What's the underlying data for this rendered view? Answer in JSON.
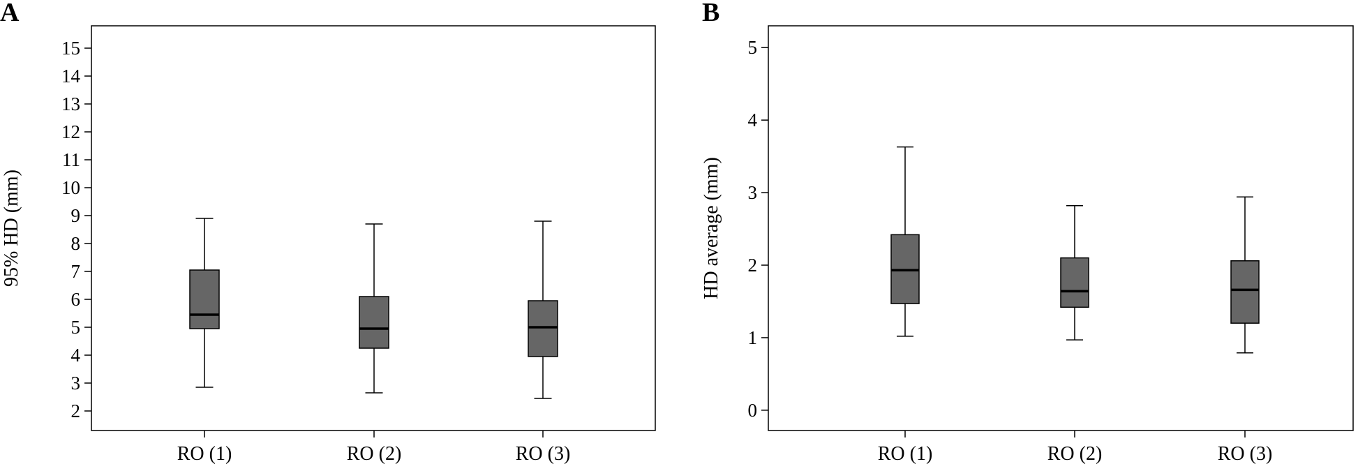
{
  "figure": {
    "panels": [
      {
        "letter": "A"
      },
      {
        "letter": "B"
      }
    ]
  },
  "chart_data": [
    {
      "type": "box",
      "panel": "A",
      "title": "",
      "xlabel": "",
      "ylabel": "95% HD (mm)",
      "ylim": [
        1.3,
        15.8
      ],
      "yticks": [
        2,
        3,
        4,
        5,
        6,
        7,
        8,
        9,
        10,
        11,
        12,
        13,
        14,
        15
      ],
      "grid": false,
      "categories": [
        "RO (1)",
        "RO (2)",
        "RO (3)"
      ],
      "boxes": [
        {
          "min": 2.85,
          "q1": 4.95,
          "median": 5.45,
          "q3": 7.05,
          "max": 8.9
        },
        {
          "min": 2.65,
          "q1": 4.25,
          "median": 4.95,
          "q3": 6.1,
          "max": 8.7
        },
        {
          "min": 2.45,
          "q1": 3.95,
          "median": 5.0,
          "q3": 5.95,
          "max": 8.8
        }
      ],
      "box_color": "#666666"
    },
    {
      "type": "box",
      "panel": "B",
      "title": "",
      "xlabel": "",
      "ylabel": "HD average (mm)",
      "ylim": [
        -0.28,
        5.3
      ],
      "yticks": [
        0,
        1,
        2,
        3,
        4,
        5
      ],
      "grid": false,
      "categories": [
        "RO (1)",
        "RO (2)",
        "RO (3)"
      ],
      "boxes": [
        {
          "min": 1.02,
          "q1": 1.47,
          "median": 1.93,
          "q3": 2.42,
          "max": 3.63
        },
        {
          "min": 0.97,
          "q1": 1.42,
          "median": 1.64,
          "q3": 2.1,
          "max": 2.82
        },
        {
          "min": 0.79,
          "q1": 1.2,
          "median": 1.66,
          "q3": 2.06,
          "max": 2.94
        }
      ],
      "box_color": "#666666"
    }
  ]
}
